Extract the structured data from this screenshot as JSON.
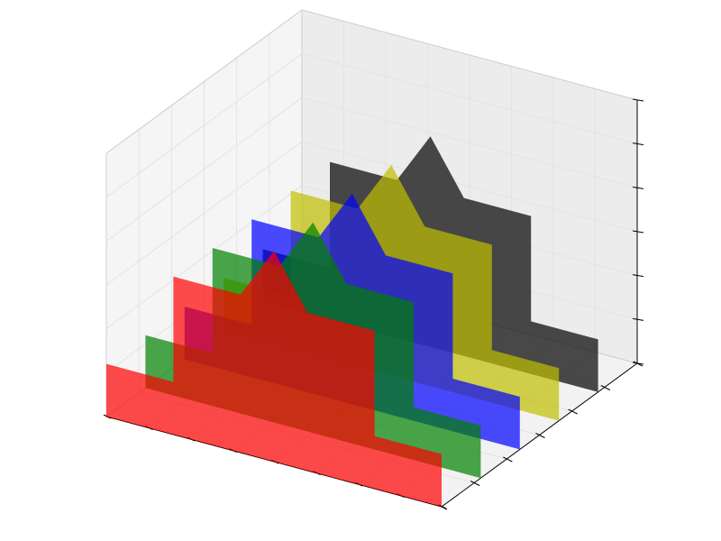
{
  "chart_data": {
    "type": "3d-polygon",
    "title": "",
    "xlabel": "",
    "ylabel": "",
    "zlabel": "",
    "grid": true,
    "xlim": [
      0,
      10
    ],
    "ylim": [
      0,
      5
    ],
    "zlim": [
      0,
      1.0
    ],
    "z_shape": [
      0.2,
      0.2,
      0.6,
      0.6,
      0.8,
      0.6,
      0.6,
      0.2,
      0.2
    ],
    "x_shape": [
      0,
      2,
      2,
      4,
      5,
      6,
      8,
      8,
      10
    ],
    "series": [
      {
        "y": 0,
        "color": "#ff0000",
        "alpha": 0.7
      },
      {
        "y": 1,
        "color": "#008000",
        "alpha": 0.7
      },
      {
        "y": 2,
        "color": "#0000ff",
        "alpha": 0.7
      },
      {
        "y": 3,
        "color": "#bfbf00",
        "alpha": 0.7
      },
      {
        "y": 4,
        "color": "#000000",
        "alpha": 0.7
      }
    ]
  }
}
